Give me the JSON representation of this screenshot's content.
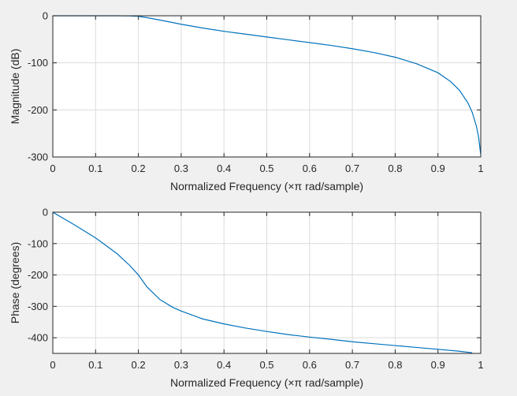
{
  "chart_data": [
    {
      "type": "line",
      "title": "",
      "xlabel": "Normalized Frequency  (×π rad/sample)",
      "ylabel": "Magnitude (dB)",
      "xlim": [
        0,
        1
      ],
      "ylim": [
        -300,
        0
      ],
      "xticks": [
        0,
        0.1,
        0.2,
        0.3,
        0.4,
        0.5,
        0.6,
        0.7,
        0.8,
        0.9,
        1
      ],
      "xtick_labels": [
        "0",
        "0.1",
        "0.2",
        "0.3",
        "0.4",
        "0.5",
        "0.6",
        "0.7",
        "0.8",
        "0.9",
        "1"
      ],
      "yticks": [
        -300,
        -200,
        -100,
        0
      ],
      "ytick_labels": [
        "-300",
        "-200",
        "-100",
        "0"
      ],
      "grid": true,
      "series": [
        {
          "color": "#0072bd",
          "x": [
            0,
            0.05,
            0.1,
            0.15,
            0.18,
            0.2,
            0.22,
            0.25,
            0.3,
            0.35,
            0.4,
            0.45,
            0.5,
            0.55,
            0.6,
            0.65,
            0.7,
            0.75,
            0.8,
            0.85,
            0.9,
            0.93,
            0.95,
            0.97,
            0.98,
            0.99,
            0.995,
            1.0
          ],
          "y": [
            0,
            0,
            0,
            0,
            -0.3,
            -1,
            -4,
            -9,
            -18,
            -26,
            -33,
            -39,
            -45,
            -51,
            -57,
            -63,
            -70,
            -78,
            -88,
            -102,
            -121,
            -140,
            -158,
            -185,
            -205,
            -235,
            -258,
            -295
          ]
        }
      ]
    },
    {
      "type": "line",
      "title": "",
      "xlabel": "Normalized Frequency  (×π rad/sample)",
      "ylabel": "Phase (degrees)",
      "xlim": [
        0,
        1
      ],
      "ylim": [
        -450,
        0
      ],
      "xticks": [
        0,
        0.1,
        0.2,
        0.3,
        0.4,
        0.5,
        0.6,
        0.7,
        0.8,
        0.9,
        1
      ],
      "xtick_labels": [
        "0",
        "0.1",
        "0.2",
        "0.3",
        "0.4",
        "0.5",
        "0.6",
        "0.7",
        "0.8",
        "0.9",
        "1"
      ],
      "yticks": [
        -400,
        -300,
        -200,
        -100,
        0
      ],
      "ytick_labels": [
        "-400",
        "-300",
        "-200",
        "-100",
        "0"
      ],
      "grid": true,
      "series": [
        {
          "color": "#0072bd",
          "x": [
            0,
            0.05,
            0.1,
            0.15,
            0.18,
            0.2,
            0.22,
            0.25,
            0.28,
            0.3,
            0.35,
            0.4,
            0.45,
            0.5,
            0.55,
            0.6,
            0.65,
            0.7,
            0.75,
            0.8,
            0.85,
            0.9,
            0.95,
            0.98
          ],
          "y": [
            0,
            -40,
            -82,
            -132,
            -170,
            -200,
            -238,
            -278,
            -303,
            -315,
            -340,
            -356,
            -369,
            -380,
            -390,
            -398,
            -405,
            -413,
            -419,
            -425,
            -431,
            -437,
            -443,
            -448
          ]
        }
      ]
    }
  ]
}
